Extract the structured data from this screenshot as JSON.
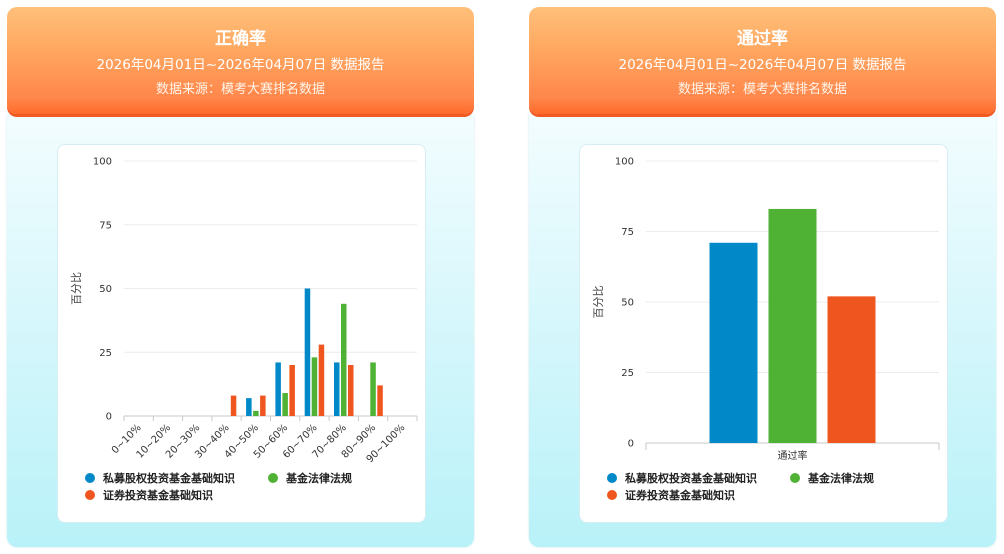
{
  "panels": [
    {
      "title": "正确率",
      "date_range": "2026年04月01日~2026年04月07日 数据报告",
      "source": "数据来源：模考大赛排名数据"
    },
    {
      "title": "通过率",
      "date_range": "2026年04月01日~2026年04月07日 数据报告",
      "source": "数据来源：模考大赛排名数据"
    }
  ],
  "colors": {
    "blue": "#0088c8",
    "green": "#4fb234",
    "orange": "#ef561f"
  },
  "chart_data": [
    {
      "type": "bar",
      "ylabel": "百分比",
      "ylim": [
        0,
        100
      ],
      "yticks": [
        0,
        25,
        50,
        75,
        100
      ],
      "categories": [
        "0~10%",
        "10~20%",
        "20~30%",
        "30~40%",
        "40~50%",
        "50~60%",
        "60~70%",
        "70~80%",
        "80~90%",
        "90~100%"
      ],
      "series": [
        {
          "name": "私募股权投资基金基础知识",
          "color": "#0088c8",
          "values": [
            0,
            0,
            0,
            0,
            7,
            21,
            50,
            21,
            0,
            0
          ]
        },
        {
          "name": "基金法律法规",
          "color": "#4fb234",
          "values": [
            0,
            0,
            0,
            0,
            2,
            9,
            23,
            44,
            21,
            0
          ]
        },
        {
          "name": "证券投资基金基础知识",
          "color": "#ef561f",
          "values": [
            0,
            0,
            0,
            8,
            8,
            20,
            28,
            20,
            12,
            0
          ]
        }
      ],
      "grid": true,
      "legend_position": "bottom-left"
    },
    {
      "type": "bar",
      "ylabel": "百分比",
      "ylim": [
        0,
        100
      ],
      "yticks": [
        0,
        25,
        50,
        75,
        100
      ],
      "categories": [
        "通过率"
      ],
      "series": [
        {
          "name": "私募股权投资基金基础知识",
          "color": "#0088c8",
          "values": [
            71
          ]
        },
        {
          "name": "基金法律法规",
          "color": "#4fb234",
          "values": [
            83
          ]
        },
        {
          "name": "证券投资基金基础知识",
          "color": "#ef561f",
          "values": [
            52
          ]
        }
      ],
      "grid": true,
      "legend_position": "bottom-left"
    }
  ]
}
